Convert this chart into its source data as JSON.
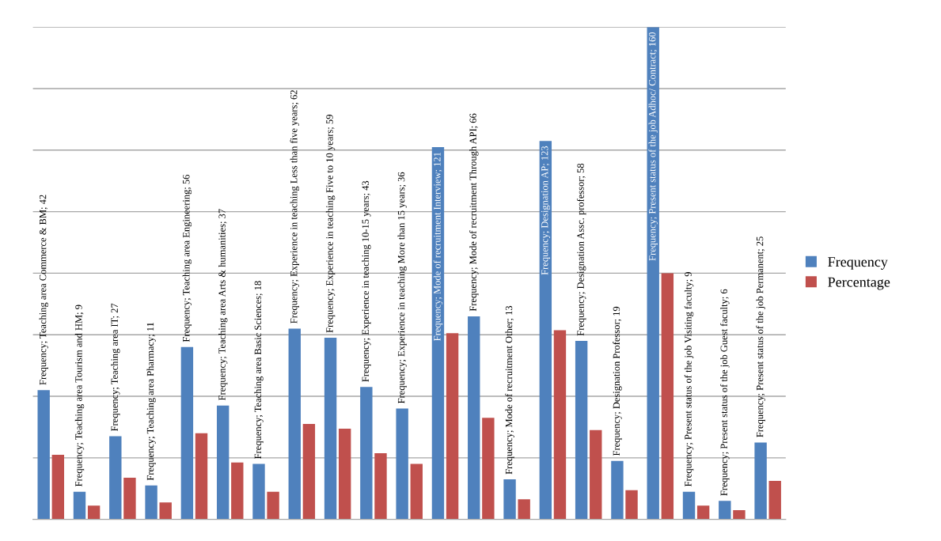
{
  "chart_data": {
    "type": "bar",
    "categories": [
      null,
      null,
      null,
      null,
      null,
      null,
      null,
      null,
      null,
      null,
      null,
      null,
      null,
      null,
      null,
      null,
      null,
      null,
      null,
      null,
      null
    ],
    "series": [
      {
        "name": "Frequency",
        "color": "#4f81bd",
        "values": [
          42,
          9,
          27,
          11,
          56,
          37,
          18,
          62,
          59,
          43,
          36,
          121,
          66,
          13,
          123,
          58,
          19,
          160,
          9,
          6,
          25
        ],
        "value_labels": [
          "Frequency; Teaching area Commerce & BM; 42",
          "Frequency; Teaching area Tourism and HM; 9",
          "Frequency; Teaching area IT; 27",
          "Frequency; Teaching area Pharmacy; 11",
          "Frequency; Teaching area Engineering; 56",
          "Frequency; Teaching area Arts & humanities; 37",
          "Frequency; Teaching area Basic Sciences; 18",
          "Frequency; Experience in teaching Less than five years; 62",
          "Frequency; Experience in teaching Five to 10 years; 59",
          "Frequency; Experience in teaching 10-15 years; 43",
          "Frequency; Experience in teaching More than 15 years; 36",
          "Frequency; Mode of recruitment Interview; 121",
          "Frequency; Mode of recruitment Through API; 66",
          "Frequency; Mode of recruitment Other; 13",
          "Frequency; Designation AP; 123",
          "Frequency; Designation Assc. professor; 58",
          "Frequency; Designation Professor; 19",
          "Frequency; Present status of the job Adhoc/ Contract; 160",
          "Frequency; Present status of the job Visiting faculty; 9",
          "Frequency; Present status of the job Guest faculty; 6",
          "Frequency; Present status of the job Permanent; 25"
        ]
      },
      {
        "name": "Percentage",
        "color": "#c0504d",
        "values": [
          21,
          4.5,
          13.5,
          5.5,
          28,
          18.5,
          9,
          31,
          29.5,
          21.5,
          18,
          60.5,
          33,
          6.5,
          61.5,
          29,
          9.5,
          80,
          4.5,
          3,
          12.5
        ]
      }
    ],
    "ylim": [
      0,
      160
    ],
    "yticks": [
      {
        "value": 0,
        "label": null
      },
      {
        "value": 20,
        "label": null
      },
      {
        "value": 40,
        "label": null
      },
      {
        "value": 60,
        "label": null
      },
      {
        "value": 80,
        "label": null
      },
      {
        "value": 100,
        "label": null
      },
      {
        "value": 120,
        "label": null
      },
      {
        "value": 140,
        "label": null
      },
      {
        "value": 160,
        "label": null
      }
    ],
    "grid": "y",
    "legend": "right"
  }
}
